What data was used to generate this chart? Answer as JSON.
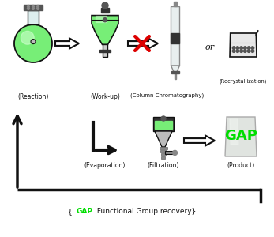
{
  "bg_color": "#ffffff",
  "green_color": "#00dd00",
  "red_color": "#dd0000",
  "black_color": "#111111",
  "light_green": "#77ee77",
  "light_green2": "#aaeebb",
  "labels_row1": [
    "(Reaction)",
    "(Work-up)",
    "(Column Chromatography)"
  ],
  "labels_row2": [
    "(Evaporation)",
    "(Filtration)",
    "(Product)"
  ],
  "label_recryst": "(Recrystallization)",
  "label_or": "or",
  "label_gap_recovery_pre": "{ ",
  "label_gap_recovery_gap": "GAP",
  "label_gap_recovery_post": " Functional Group recovery}",
  "label_gap": "GAP",
  "gap_label_color": "#00dd00",
  "figsize": [
    3.47,
    3.0
  ],
  "dpi": 100
}
